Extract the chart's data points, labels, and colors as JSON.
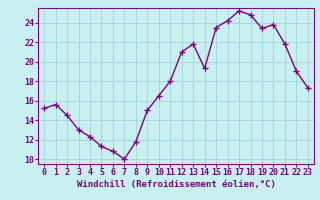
{
  "x": [
    0,
    1,
    2,
    3,
    4,
    5,
    6,
    7,
    8,
    9,
    10,
    11,
    12,
    13,
    14,
    15,
    16,
    17,
    18,
    19,
    20,
    21,
    22,
    23
  ],
  "y": [
    15.2,
    15.6,
    14.5,
    13.0,
    12.3,
    11.3,
    10.8,
    10.0,
    11.8,
    15.0,
    16.5,
    18.0,
    21.0,
    21.8,
    19.3,
    23.5,
    24.2,
    25.2,
    24.8,
    23.4,
    23.8,
    21.8,
    19.0,
    17.3
  ],
  "line_color": "#800080",
  "marker": "+",
  "marker_size": 4,
  "background_color": "#c8f0f0",
  "grid_color": "#a8d8d8",
  "xlabel": "Windchill (Refroidissement éolien,°C)",
  "xlim": [
    -0.5,
    23.5
  ],
  "ylim": [
    9.5,
    25.5
  ],
  "yticks": [
    10,
    12,
    14,
    16,
    18,
    20,
    22,
    24
  ],
  "xticks": [
    0,
    1,
    2,
    3,
    4,
    5,
    6,
    7,
    8,
    9,
    10,
    11,
    12,
    13,
    14,
    15,
    16,
    17,
    18,
    19,
    20,
    21,
    22,
    23
  ],
  "tick_color": "#800080",
  "label_color": "#800080",
  "axis_color": "#800080",
  "font_size_xlabel": 6.5,
  "font_size_tick": 6.0,
  "linewidth": 1.0
}
